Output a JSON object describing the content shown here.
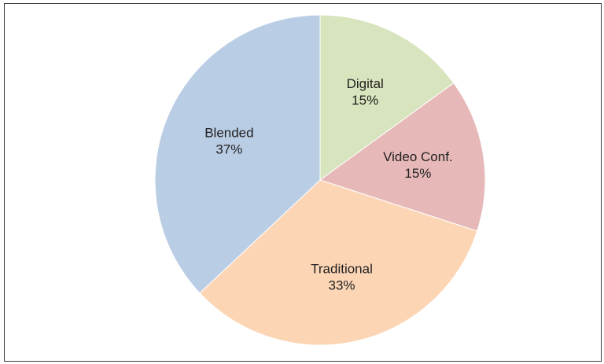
{
  "chart_data": {
    "type": "pie",
    "title": "",
    "legend": "none",
    "start_angle_deg": 0,
    "direction": "clockwise",
    "slices": [
      {
        "name": "Digital",
        "value": 15,
        "value_label": "15%",
        "color": "#d7e4bd"
      },
      {
        "name": "Video Conf.",
        "value": 15,
        "value_label": "15%",
        "color": "#e6b9b8"
      },
      {
        "name": "Traditional",
        "value": 33,
        "value_label": "33%",
        "color": "#fcd5b5"
      },
      {
        "name": "Blended",
        "value": 37,
        "value_label": "37%",
        "color": "#b9cde5"
      }
    ]
  }
}
